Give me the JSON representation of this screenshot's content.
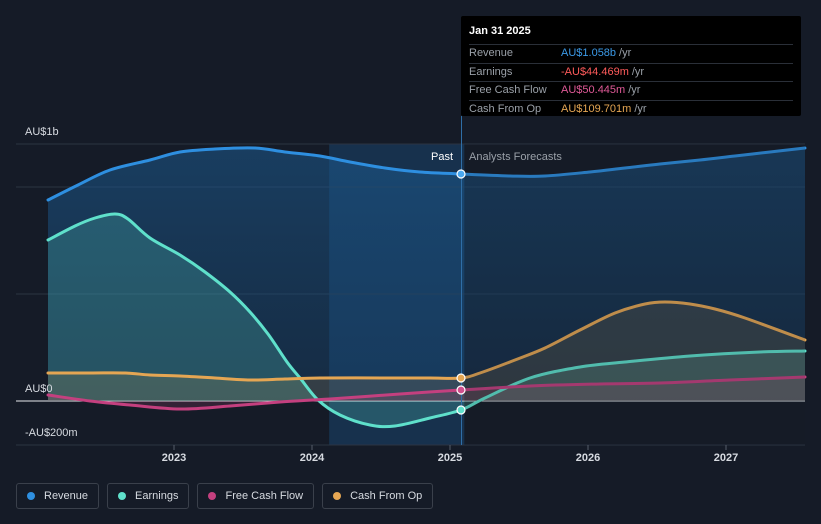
{
  "chart_data": {
    "type": "area",
    "x_range": [
      2022.0,
      2027.6
    ],
    "y_range": [
      -200,
      1000
    ],
    "y_tick_labels": [
      {
        "value": 1000,
        "label": "AU$1b"
      },
      {
        "value": 0,
        "label": "AU$0"
      },
      {
        "value": -200,
        "label": "-AU$200m"
      }
    ],
    "x_tick_labels": [
      {
        "value": 2023,
        "label": "2023"
      },
      {
        "value": 2024,
        "label": "2024"
      },
      {
        "value": 2025,
        "label": "2025"
      },
      {
        "value": 2026,
        "label": "2026"
      },
      {
        "value": 2027,
        "label": "2027"
      }
    ],
    "gridlines": [
      1000,
      800,
      500,
      0,
      -200
    ],
    "divider_x": 2025.08,
    "past_label": "Past",
    "forecast_label": "Analysts Forecasts",
    "highlight_start_x": 2024.08,
    "series": [
      {
        "name": "Revenue",
        "color": "#2e8fe0",
        "points": [
          [
            2022.0,
            935
          ],
          [
            2022.25,
            985
          ],
          [
            2022.5,
            1030
          ],
          [
            2022.75,
            1055
          ],
          [
            2023.0,
            1075
          ],
          [
            2023.25,
            1082
          ],
          [
            2023.5,
            1085
          ],
          [
            2023.75,
            1080
          ],
          [
            2024.0,
            1072
          ],
          [
            2024.25,
            1062
          ],
          [
            2024.5,
            1050
          ],
          [
            2024.75,
            1040
          ],
          [
            2025.08,
            1058
          ],
          [
            2025.5,
            1053
          ],
          [
            2025.75,
            1052
          ],
          [
            2026.0,
            1058
          ],
          [
            2026.25,
            1065
          ],
          [
            2026.5,
            1073
          ],
          [
            2026.75,
            1080
          ],
          [
            2027.0,
            1088
          ],
          [
            2027.25,
            1096
          ],
          [
            2027.6,
            1105
          ]
        ]
      },
      {
        "name": "Earnings",
        "color": "#5fe0cb",
        "points": [
          [
            2022.0,
            752
          ],
          [
            2022.2,
            793
          ],
          [
            2022.35,
            818
          ],
          [
            2022.5,
            826
          ],
          [
            2022.6,
            817
          ],
          [
            2022.75,
            772
          ],
          [
            2023.0,
            712
          ],
          [
            2023.25,
            647
          ],
          [
            2023.5,
            568
          ],
          [
            2023.65,
            500
          ],
          [
            2023.8,
            410
          ],
          [
            2023.95,
            307
          ],
          [
            2024.05,
            240
          ],
          [
            2024.2,
            175
          ],
          [
            2024.4,
            138
          ],
          [
            2024.6,
            124
          ],
          [
            2024.85,
            140
          ],
          [
            2025.08,
            -44.469
          ],
          [
            2025.25,
            -10
          ],
          [
            2025.5,
            22
          ],
          [
            2025.75,
            45
          ],
          [
            2026.0,
            62
          ],
          [
            2026.5,
            86
          ],
          [
            2027.0,
            102
          ],
          [
            2027.6,
            112
          ]
        ]
      },
      {
        "name": "Free Cash Flow",
        "color": "#c4407f",
        "points": [
          [
            2022.0,
            248
          ],
          [
            2022.5,
            228
          ],
          [
            2023.0,
            212
          ],
          [
            2023.5,
            222
          ],
          [
            2024.0,
            238
          ],
          [
            2024.5,
            252
          ],
          [
            2025.08,
            50.445
          ],
          [
            2025.5,
            60
          ],
          [
            2026.0,
            68
          ],
          [
            2026.5,
            72
          ],
          [
            2027.0,
            80
          ],
          [
            2027.6,
            91
          ]
        ]
      },
      {
        "name": "Cash From Op",
        "color": "#e5a653",
        "points": [
          [
            2022.0,
            318
          ],
          [
            2022.25,
            320
          ],
          [
            2022.55,
            320
          ],
          [
            2022.75,
            316
          ],
          [
            2023.0,
            313
          ],
          [
            2023.25,
            306
          ],
          [
            2023.5,
            302
          ],
          [
            2023.75,
            304
          ],
          [
            2024.0,
            305
          ],
          [
            2024.5,
            306
          ],
          [
            2024.85,
            306
          ],
          [
            2025.08,
            109.701
          ],
          [
            2025.25,
            125
          ],
          [
            2025.5,
            185
          ],
          [
            2025.75,
            230
          ],
          [
            2026.0,
            300
          ],
          [
            2026.25,
            370
          ],
          [
            2026.5,
            425
          ],
          [
            2026.65,
            443
          ],
          [
            2026.85,
            440
          ],
          [
            2027.0,
            425
          ],
          [
            2027.25,
            390
          ],
          [
            2027.6,
            285
          ]
        ]
      }
    ]
  },
  "tooltip": {
    "date": "Jan 31 2025",
    "rows": [
      {
        "label": "Revenue",
        "value": "AU$1.058b",
        "unit": "/yr",
        "color": "#3b9ae8"
      },
      {
        "label": "Earnings",
        "value": "-AU$44.469m",
        "unit": "/yr",
        "color": "#ff5b5b"
      },
      {
        "label": "Free Cash Flow",
        "value": "AU$50.445m",
        "unit": "/yr",
        "color": "#e05a98"
      },
      {
        "label": "Cash From Op",
        "value": "AU$109.701m",
        "unit": "/yr",
        "color": "#e5a653"
      }
    ]
  },
  "legend": [
    {
      "label": "Revenue",
      "color": "#2e8fe0"
    },
    {
      "label": "Earnings",
      "color": "#5fe0cb"
    },
    {
      "label": "Free Cash Flow",
      "color": "#c4407f"
    },
    {
      "label": "Cash From Op",
      "color": "#e5a653"
    }
  ]
}
